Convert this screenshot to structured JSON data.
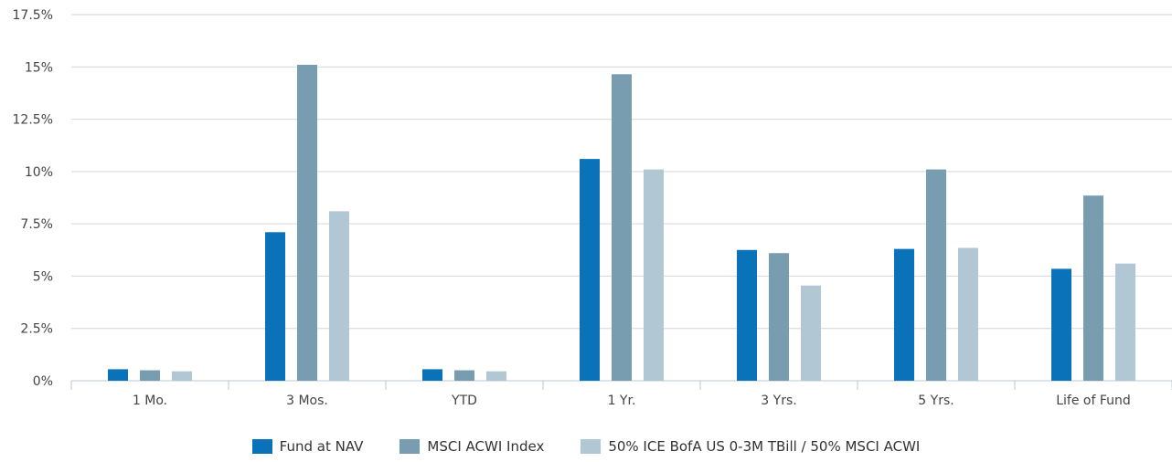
{
  "chart_data": {
    "type": "bar",
    "categories": [
      "1 Mo.",
      "3 Mos.",
      "YTD",
      "1 Yr.",
      "3 Yrs.",
      "5 Yrs.",
      "Life of Fund"
    ],
    "series": [
      {
        "name": "Fund at NAV",
        "color": "#0a72b8",
        "values": [
          0.55,
          7.1,
          0.55,
          10.6,
          6.25,
          6.3,
          5.35
        ]
      },
      {
        "name": "MSCI ACWI Index",
        "color": "#789cb0",
        "values": [
          0.5,
          15.1,
          0.5,
          14.65,
          6.1,
          10.1,
          8.85
        ]
      },
      {
        "name": "50% ICE BofA US 0-3M TBill / 50% MSCI ACWI",
        "color": "#b1c8d4",
        "values": [
          0.45,
          8.1,
          0.45,
          10.1,
          4.55,
          6.35,
          5.6
        ]
      }
    ],
    "yticks": [
      "0%",
      "2.5%",
      "5%",
      "7.5%",
      "10%",
      "12.5%",
      "15%",
      "17.5%"
    ],
    "ylim": [
      0,
      17.5
    ],
    "grid": true,
    "legend_position": "bottom"
  }
}
